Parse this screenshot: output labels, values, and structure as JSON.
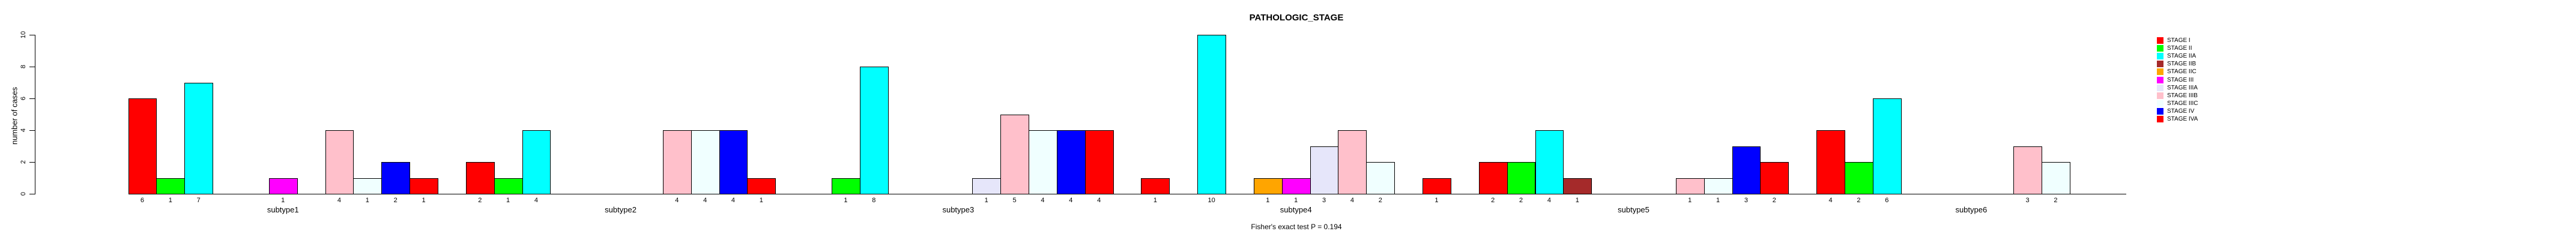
{
  "title": "PATHOLOGIC_STAGE",
  "subtitle": "Fisher's exact test P = 0.194",
  "y_axis": {
    "label": "number of cases",
    "tick_labels": [
      "0",
      "2",
      "4",
      "6",
      "8",
      "10"
    ]
  },
  "chart_data": {
    "type": "bar",
    "title": "PATHOLOGIC_STAGE",
    "annotation": "Fisher's exact test P = 0.194",
    "xlabel": "",
    "ylabel": "number of cases",
    "ylim": [
      0,
      10
    ],
    "yticks": [
      0,
      2,
      4,
      6,
      8,
      10
    ],
    "grid": false,
    "legend_position": "right",
    "bar_labels": "counts shown under each nonzero bar",
    "categories": [
      "subtype1",
      "subtype2",
      "subtype3",
      "subtype4",
      "subtype5",
      "subtype6"
    ],
    "series": [
      {
        "name": "STAGE I",
        "color": "#FF0000",
        "values": [
          6,
          2,
          0,
          1,
          2,
          4
        ]
      },
      {
        "name": "STAGE II",
        "color": "#00FF00",
        "values": [
          1,
          1,
          1,
          0,
          2,
          2
        ]
      },
      {
        "name": "STAGE IIA",
        "color": "#00FFFF",
        "values": [
          7,
          4,
          8,
          10,
          4,
          6
        ]
      },
      {
        "name": "STAGE IIB",
        "color": "#A52A2A",
        "values": [
          0,
          0,
          0,
          0,
          1,
          0
        ]
      },
      {
        "name": "STAGE IIC",
        "color": "#FFA500",
        "values": [
          0,
          0,
          0,
          1,
          0,
          0
        ]
      },
      {
        "name": "STAGE III",
        "color": "#FF00FF",
        "values": [
          1,
          0,
          0,
          1,
          0,
          0
        ]
      },
      {
        "name": "STAGE IIIA",
        "color": "#E6E6FA",
        "values": [
          0,
          0,
          1,
          3,
          0,
          0
        ]
      },
      {
        "name": "STAGE IIIB",
        "color": "#FFC0CB",
        "values": [
          4,
          4,
          5,
          4,
          1,
          3
        ]
      },
      {
        "name": "STAGE IIIC",
        "color": "#F0FFFF",
        "values": [
          1,
          4,
          4,
          2,
          1,
          2
        ]
      },
      {
        "name": "STAGE IV",
        "color": "#0000FF",
        "values": [
          2,
          4,
          4,
          0,
          3,
          0
        ]
      },
      {
        "name": "STAGE IVA",
        "color": "#FF0000",
        "values": [
          1,
          1,
          4,
          1,
          2,
          0
        ]
      }
    ]
  }
}
